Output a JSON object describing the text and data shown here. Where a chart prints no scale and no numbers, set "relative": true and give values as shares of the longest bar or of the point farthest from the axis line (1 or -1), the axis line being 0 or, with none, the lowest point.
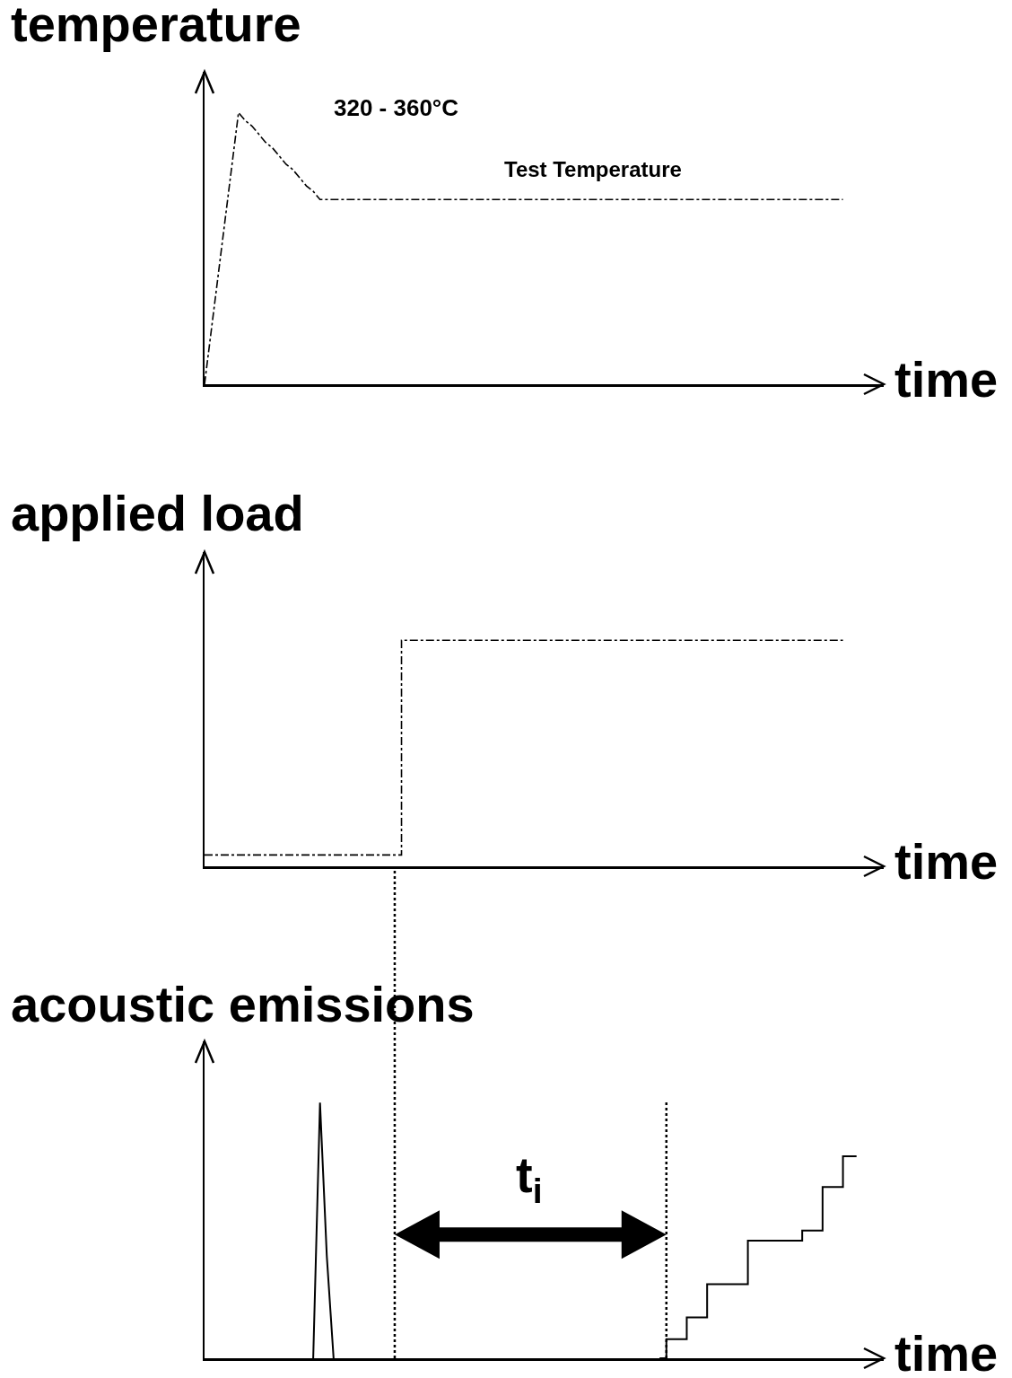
{
  "chart_data": [
    {
      "type": "line",
      "relative": true,
      "ylabel": "temperature",
      "xlabel": "time",
      "line_style": "dashed",
      "annotations": [
        "320 - 360°C",
        "Test Temperature"
      ],
      "categories": [
        null,
        null,
        null,
        null,
        null,
        null,
        null,
        null,
        null,
        null,
        null,
        null,
        null,
        null,
        null,
        null,
        null,
        null,
        null,
        null,
        null,
        null,
        null,
        null,
        null,
        null,
        null,
        null,
        null,
        null,
        null,
        null,
        null,
        null,
        null,
        null,
        null,
        null,
        null,
        null,
        null,
        null,
        null,
        null,
        null,
        null,
        null,
        null,
        null,
        null,
        null,
        null,
        null,
        null,
        null,
        null,
        null,
        null,
        null,
        null,
        null,
        null,
        null,
        null,
        null,
        null,
        null,
        null,
        null,
        null,
        null,
        null,
        null,
        null,
        null,
        null,
        null,
        null,
        null,
        null,
        null,
        null,
        null,
        null,
        null,
        null,
        null,
        null,
        null,
        null,
        null,
        null,
        null,
        null,
        null,
        null,
        null,
        null,
        null,
        null,
        null
      ],
      "series": [
        {
          "color": "#000000",
          "values": [
            0,
            0.2,
            0.4,
            0.6,
            0.8,
            1,
            0.97,
            0.95,
            0.92,
            0.89,
            0.87,
            0.84,
            0.81,
            0.79,
            0.76,
            0.73,
            0.71,
            0.68,
            0.68,
            0.68,
            0.68,
            0.68,
            0.68,
            0.68,
            0.68,
            0.68,
            0.68,
            0.68,
            0.68,
            0.68,
            0.68,
            0.68,
            0.68,
            0.68,
            0.68,
            0.68,
            0.68,
            0.68,
            0.68,
            0.68,
            0.68,
            0.68,
            0.68,
            0.68,
            0.68,
            0.68,
            0.68,
            0.68,
            0.68,
            0.68,
            0.68,
            0.68,
            0.68,
            0.68,
            0.68,
            0.68,
            0.68,
            0.68,
            0.68,
            0.68,
            0.68,
            0.68,
            0.68,
            0.68,
            0.68,
            0.68,
            0.68,
            0.68,
            0.68,
            0.68,
            0.68,
            0.68,
            0.68,
            0.68,
            0.68,
            0.68,
            0.68,
            0.68,
            0.68,
            0.68,
            0.68,
            0.68,
            0.68,
            0.68,
            0.68,
            0.68,
            0.68,
            0.68,
            0.68,
            0.68,
            0.68,
            0.68,
            0.68,
            0.68,
            0.68,
            null,
            null,
            null,
            null,
            null,
            null
          ]
        }
      ]
    },
    {
      "type": "step",
      "relative": true,
      "ylabel": "applied load",
      "xlabel": "time",
      "line_style": "dashed",
      "categories": [
        null,
        null,
        null,
        null,
        null,
        null,
        null,
        null,
        null,
        null,
        null,
        null,
        null,
        null,
        null,
        null,
        null,
        null,
        null,
        null,
        null,
        null,
        null,
        null,
        null,
        null,
        null,
        null,
        null,
        null,
        null,
        null,
        null,
        null,
        null,
        null,
        null,
        null,
        null,
        null,
        null,
        null,
        null,
        null,
        null,
        null,
        null,
        null,
        null,
        null,
        null,
        null,
        null,
        null,
        null,
        null,
        null,
        null,
        null,
        null,
        null,
        null,
        null,
        null,
        null,
        null,
        null,
        null,
        null,
        null,
        null,
        null,
        null,
        null,
        null,
        null,
        null,
        null,
        null,
        null,
        null,
        null,
        null,
        null,
        null,
        null,
        null,
        null,
        null,
        null,
        null,
        null,
        null,
        null,
        null,
        null,
        null,
        null,
        null,
        null,
        null
      ],
      "series": [
        {
          "color": "#000000",
          "values": [
            0.05,
            0.05,
            0.05,
            0.05,
            0.05,
            0.05,
            0.05,
            0.05,
            0.05,
            0.05,
            0.05,
            0.05,
            0.05,
            0.05,
            0.05,
            0.05,
            0.05,
            0.05,
            0.05,
            0.05,
            0.05,
            0.05,
            0.05,
            0.05,
            0.05,
            0.05,
            0.05,
            0.05,
            0.05,
            1,
            1,
            1,
            1,
            1,
            1,
            1,
            1,
            1,
            1,
            1,
            1,
            1,
            1,
            1,
            1,
            1,
            1,
            1,
            1,
            1,
            1,
            1,
            1,
            1,
            1,
            1,
            1,
            1,
            1,
            1,
            1,
            1,
            1,
            1,
            1,
            1,
            1,
            1,
            1,
            1,
            1,
            1,
            1,
            1,
            1,
            1,
            1,
            1,
            1,
            1,
            1,
            1,
            1,
            1,
            1,
            1,
            1,
            1,
            1,
            1,
            1,
            1,
            1,
            1,
            1,
            null,
            null,
            null,
            null,
            null,
            null
          ]
        }
      ]
    },
    {
      "type": "line",
      "relative": true,
      "ylabel": "acoustic emissions",
      "xlabel": "time",
      "line_style": "solid",
      "annotations": [
        "t$_{i}$"
      ],
      "categories": [
        null,
        null,
        null,
        null,
        null,
        null,
        null,
        null,
        null,
        null,
        null,
        null,
        null,
        null,
        null,
        null,
        null,
        null,
        null,
        null,
        null,
        null,
        null,
        null,
        null,
        null,
        null,
        null,
        null,
        null,
        null,
        null,
        null,
        null,
        null,
        null,
        null,
        null,
        null,
        null,
        null,
        null,
        null,
        null,
        null,
        null,
        null,
        null,
        null,
        null,
        null,
        null,
        null,
        null,
        null,
        null,
        null,
        null,
        null,
        null,
        null,
        null,
        null,
        null,
        null,
        null,
        null,
        null,
        null,
        null,
        null,
        null,
        null,
        null,
        null,
        null,
        null,
        null,
        null,
        null,
        null,
        null,
        null,
        null,
        null,
        null,
        null,
        null,
        null,
        null,
        null,
        null,
        null,
        null,
        null,
        null,
        null,
        null,
        null,
        null,
        null
      ],
      "series": [
        {
          "color": "#000000",
          "values": [
            null,
            null,
            null,
            null,
            null,
            null,
            null,
            null,
            null,
            null,
            null,
            null,
            null,
            null,
            null,
            null,
            0,
            1,
            0.4,
            0,
            null,
            null,
            null,
            null,
            null,
            null,
            null,
            null,
            null,
            null,
            null,
            null,
            null,
            null,
            null,
            null,
            null,
            null,
            null,
            null,
            null,
            null,
            null,
            null,
            null,
            null,
            null,
            null,
            null,
            null,
            null,
            null,
            null,
            null,
            null,
            null,
            null,
            null,
            null,
            null,
            null,
            null,
            null,
            null,
            null,
            null,
            null,
            null,
            null,
            null,
            null,
            null,
            null,
            null,
            null,
            null,
            null,
            null,
            null,
            null,
            null,
            null,
            null,
            null,
            null,
            null,
            null,
            null,
            null,
            null,
            null,
            null,
            null,
            null,
            null,
            null,
            null,
            null,
            null,
            null,
            null
          ]
        },
        {
          "type": "step",
          "color": "#000000",
          "values": [
            null,
            null,
            null,
            null,
            null,
            null,
            null,
            null,
            null,
            null,
            null,
            null,
            null,
            null,
            null,
            null,
            null,
            null,
            null,
            null,
            null,
            null,
            null,
            null,
            null,
            null,
            null,
            null,
            null,
            null,
            null,
            null,
            null,
            null,
            null,
            null,
            null,
            null,
            null,
            null,
            null,
            null,
            null,
            null,
            null,
            null,
            null,
            null,
            null,
            null,
            null,
            null,
            null,
            null,
            null,
            null,
            null,
            null,
            null,
            null,
            null,
            null,
            null,
            null,
            null,
            null,
            null,
            0,
            0.075,
            0.075,
            0.075,
            0.16,
            0.16,
            0.16,
            0.29,
            0.29,
            0.29,
            0.29,
            0.29,
            0.29,
            0.46,
            0.46,
            0.46,
            0.46,
            0.46,
            0.46,
            0.46,
            0.46,
            0.5,
            0.5,
            0.5,
            0.67,
            0.67,
            0.67,
            0.79,
            0.79,
            0.79,
            null,
            null,
            null,
            null
          ]
        }
      ]
    }
  ]
}
